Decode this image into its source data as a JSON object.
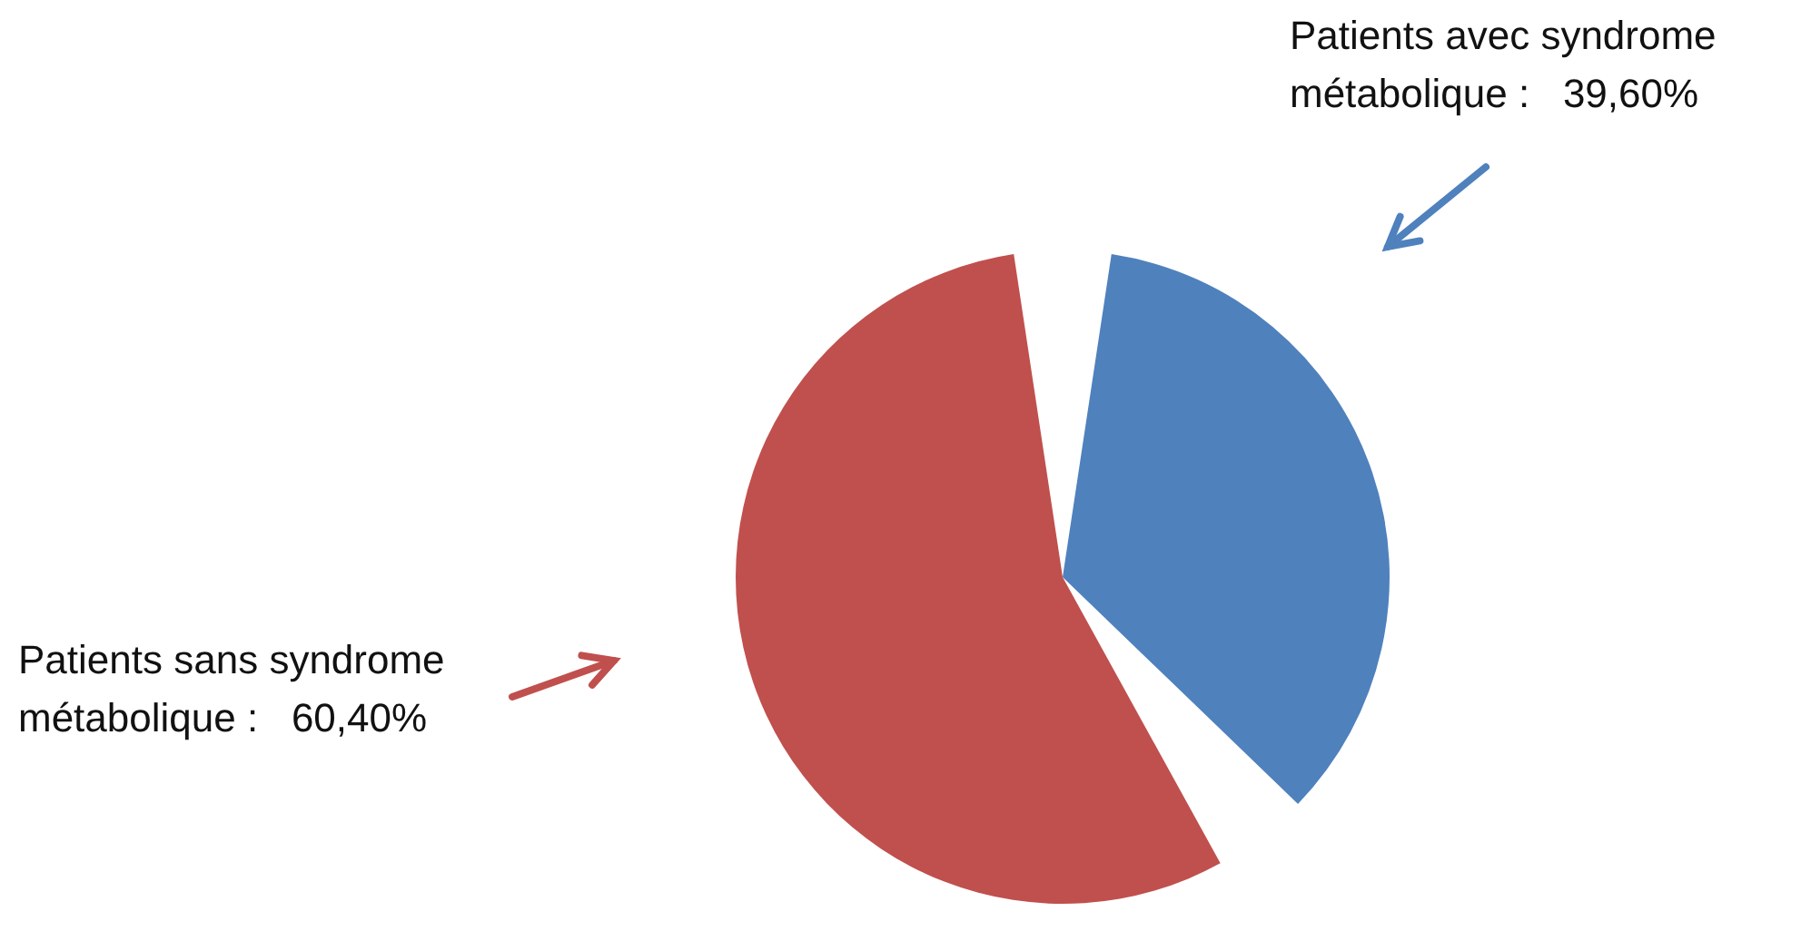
{
  "chart_data": {
    "type": "pie",
    "categories": [
      "Patients avec syndrome métabolique",
      "Patients sans syndrome métabolique"
    ],
    "values": [
      39.6,
      60.4
    ],
    "value_labels": [
      ":   39,60%",
      ":   60,40%"
    ],
    "colors": [
      "#4f81bd",
      "#c0504d"
    ]
  }
}
